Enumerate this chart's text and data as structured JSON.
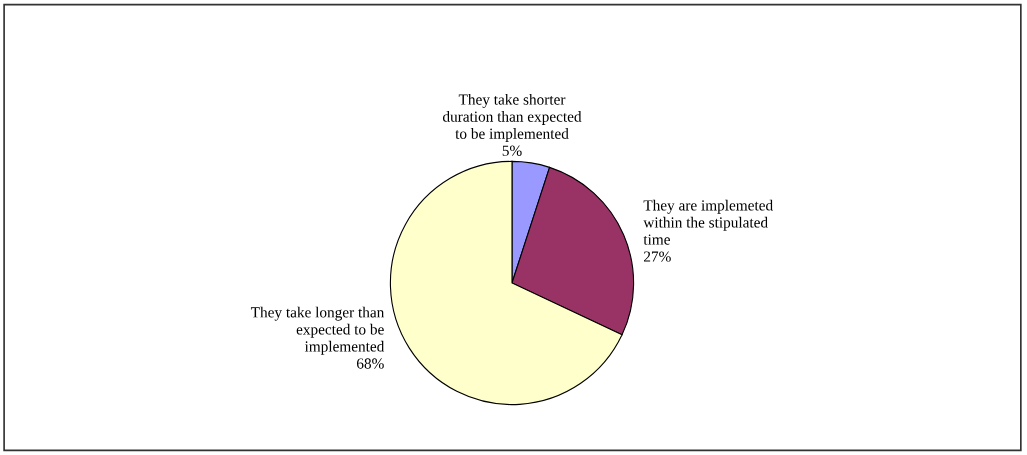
{
  "chart_data": {
    "type": "pie",
    "categories": [
      "They take shorter\nduration than expected\nto be implemented",
      "They are implemeted\nwithin the stipulated\ntime",
      "They take longer than\nexpected to be\nimplemented"
    ],
    "values": [
      5,
      27,
      68
    ],
    "value_labels": [
      "5%",
      "27%",
      "68%"
    ],
    "colors": [
      "#9999ff",
      "#993366",
      "#ffffcc"
    ],
    "legend": false
  }
}
